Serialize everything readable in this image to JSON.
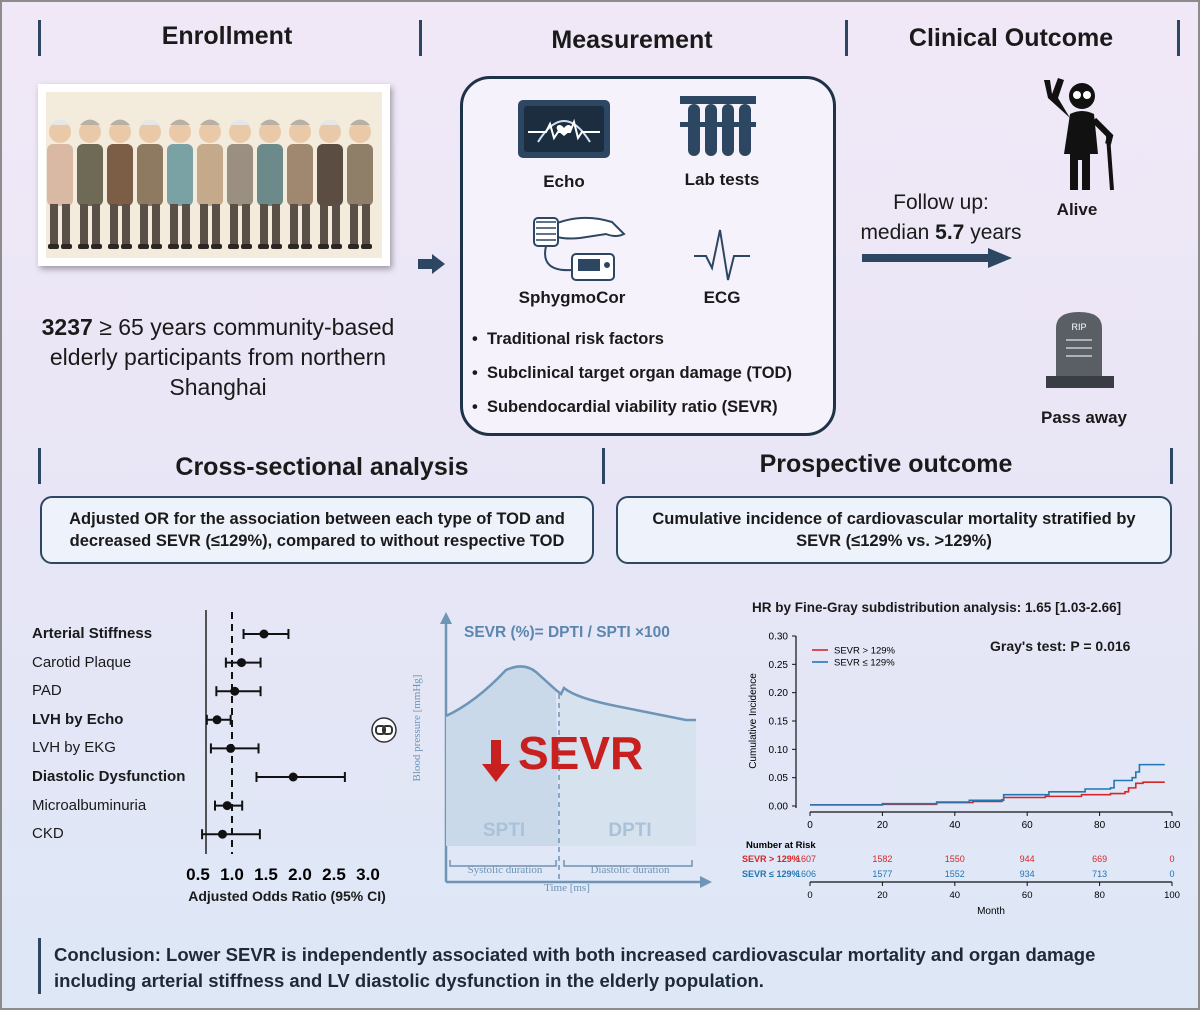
{
  "enrollment": {
    "title": "Enrollment",
    "participants_count": "3237",
    "participants_text": " ≥ 65 years community-based elderly participants from northern Shanghai"
  },
  "measurement": {
    "title": "Measurement",
    "echo": "Echo",
    "lab_tests": "Lab tests",
    "sphygmocor": "SphygmoCor",
    "ecg": "ECG",
    "bullets": [
      "Traditional risk factors",
      "Subclinical target organ damage (TOD)",
      "Subendocardial  viability ratio (SEVR)"
    ]
  },
  "outcome": {
    "title": "Clinical Outcome",
    "follow_up_line1": "Follow up:",
    "follow_up_prefix": "median ",
    "follow_up_value": "5.7",
    "follow_up_suffix": " years",
    "alive": "Alive",
    "pass_away": "Pass away",
    "rip": "RIP"
  },
  "cross": {
    "title": "Cross-sectional analysis",
    "box_text": "Adjusted OR for the association between each type of TOD and decreased SEVR (≤129%), compared to without respective TOD"
  },
  "prospective": {
    "title": "Prospective outcome",
    "box_text": "Cumulative incidence of cardiovascular mortality stratified by SEVR (≤129% vs. >129%)"
  },
  "sevr_diagram": {
    "formula": "SEVR (%)= DPTI / SPTI ×100",
    "big_label": "SEVR",
    "spti": "SPTI",
    "dpti": "DPTI",
    "ylabel": "Blood pressure [mmHg]",
    "xlabel": "Time [ms]",
    "systolic": "Systolic duration",
    "diastolic": "Diastolic duration"
  },
  "conclusion": "Conclusion: Lower SEVR is independently associated with both increased cardiovascular mortality and organ damage including arterial stiffness and LV diastolic dysfunction in the elderly population.",
  "chart_data": [
    {
      "type": "forest",
      "xlabel": "Adjusted Odds Ratio (95% CI)",
      "xlim": [
        0.5,
        3.0
      ],
      "xticks": [
        "0.5",
        "1.0",
        "1.5",
        "2.0",
        "2.5",
        "3.0"
      ],
      "reference_line": 1.0,
      "rows": [
        {
          "label": "Arterial Stiffness",
          "bold": true,
          "or": 1.47,
          "lo": 1.17,
          "hi": 1.83
        },
        {
          "label": "Carotid Plaque",
          "bold": false,
          "or": 1.14,
          "lo": 0.91,
          "hi": 1.42
        },
        {
          "label": "PAD",
          "bold": false,
          "or": 1.04,
          "lo": 0.77,
          "hi": 1.42
        },
        {
          "label": "LVH by Echo",
          "bold": true,
          "or": 0.78,
          "lo": 0.63,
          "hi": 0.98
        },
        {
          "label": "LVH by EKG",
          "bold": false,
          "or": 0.98,
          "lo": 0.69,
          "hi": 1.39
        },
        {
          "label": "Diastolic Dysfunction",
          "bold": true,
          "or": 1.9,
          "lo": 1.36,
          "hi": 2.66
        },
        {
          "label": "Microalbuminuria",
          "bold": false,
          "or": 0.93,
          "lo": 0.75,
          "hi": 1.15
        },
        {
          "label": "CKD",
          "bold": false,
          "or": 0.86,
          "lo": 0.56,
          "hi": 1.41
        }
      ]
    },
    {
      "type": "line",
      "title": "HR by Fine-Gray subdistribution analysis: 1.65 [1.03-2.66]",
      "annotation": "Gray's test: P =  0.016",
      "ylabel": "Cumulative Incidence",
      "xlabel": "Month",
      "ylim": [
        0,
        0.3
      ],
      "xlim": [
        0,
        100
      ],
      "yticks": [
        "0.00",
        "0.05",
        "0.10",
        "0.15",
        "0.20",
        "0.25",
        "0.30"
      ],
      "xticks": [
        "0",
        "20",
        "40",
        "60",
        "80",
        "100"
      ],
      "legend": "top-left",
      "series": [
        {
          "name": "SEVR > 129%",
          "color": "#d62728",
          "x": [
            0,
            20,
            35,
            45,
            53,
            53.5,
            65,
            75,
            83,
            87,
            88,
            90,
            92,
            98
          ],
          "y": [
            0.002,
            0.003,
            0.006,
            0.008,
            0.01,
            0.015,
            0.017,
            0.02,
            0.022,
            0.025,
            0.032,
            0.04,
            0.042,
            0.042
          ]
        },
        {
          "name": "SEVR ≤ 129%",
          "color": "#1f77b4",
          "x": [
            0,
            20,
            35,
            44,
            53,
            53.5,
            66,
            76,
            83,
            84,
            89,
            90,
            91,
            98
          ],
          "y": [
            0.002,
            0.004,
            0.007,
            0.01,
            0.011,
            0.02,
            0.025,
            0.03,
            0.032,
            0.045,
            0.05,
            0.06,
            0.073,
            0.073
          ]
        }
      ],
      "risk_table": {
        "title": "Number at Risk",
        "x": [
          "0",
          "20",
          "40",
          "60",
          "80",
          "100"
        ],
        "rows": [
          {
            "label": "SEVR > 129%",
            "color": "#d62728",
            "values": [
              "1607",
              "1582",
              "1550",
              "944",
              "669",
              "0"
            ]
          },
          {
            "label": "SEVR ≤ 129%",
            "color": "#1f77b4",
            "values": [
              "1606",
              "1577",
              "1552",
              "934",
              "713",
              "0"
            ]
          }
        ]
      }
    }
  ]
}
